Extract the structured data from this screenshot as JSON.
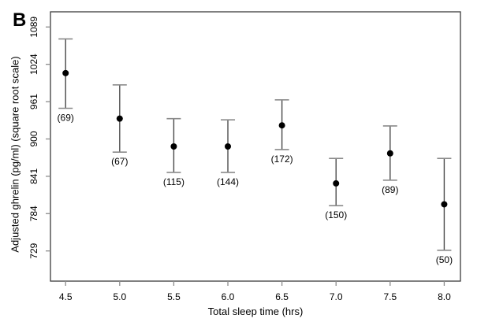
{
  "panel_label": "B",
  "colors": {
    "background": "#ffffff",
    "frame": "#3c3c3c",
    "tick_mark": "#8c8c8c",
    "error_line": "#4a4a4a",
    "error_cap": "#8a8a8a",
    "point": "#000000",
    "text": "#000000"
  },
  "chart_data": {
    "type": "scatter",
    "title": "",
    "xlabel": "Total sleep time (hrs)",
    "ylabel": "Adjusted ghrelin (pg/ml) (square root scale)",
    "y_scale": "square_root",
    "grid": false,
    "legend": false,
    "x_tick_labels": [
      "4.5",
      "5.0",
      "5.5",
      "6.0",
      "6.5",
      "7.0",
      "7.5",
      "8.0"
    ],
    "y_tick_labels": [
      "729",
      "784",
      "841",
      "900",
      "961",
      "1024",
      "1089"
    ],
    "xlim": [
      4.36,
      8.15
    ],
    "ylim": [
      686,
      1116
    ],
    "points": [
      {
        "x": 4.5,
        "mean": 1009,
        "ci_low": 950,
        "ci_high": 1068,
        "n": 69,
        "n_label": "(69)"
      },
      {
        "x": 5.0,
        "mean": 933,
        "ci_low": 879,
        "ci_high": 989,
        "n": 67,
        "n_label": "(67)"
      },
      {
        "x": 5.5,
        "mean": 888,
        "ci_low": 847,
        "ci_high": 933,
        "n": 115,
        "n_label": "(115)"
      },
      {
        "x": 6.0,
        "mean": 888,
        "ci_low": 847,
        "ci_high": 931,
        "n": 144,
        "n_label": "(144)"
      },
      {
        "x": 6.5,
        "mean": 922,
        "ci_low": 883,
        "ci_high": 964,
        "n": 172,
        "n_label": "(172)"
      },
      {
        "x": 7.0,
        "mean": 830,
        "ci_low": 796,
        "ci_high": 869,
        "n": 150,
        "n_label": "(150)"
      },
      {
        "x": 7.5,
        "mean": 877,
        "ci_low": 835,
        "ci_high": 921,
        "n": 89,
        "n_label": "(89)"
      },
      {
        "x": 8.0,
        "mean": 798,
        "ci_low": 730,
        "ci_high": 869,
        "n": 50,
        "n_label": "(50)"
      }
    ]
  }
}
